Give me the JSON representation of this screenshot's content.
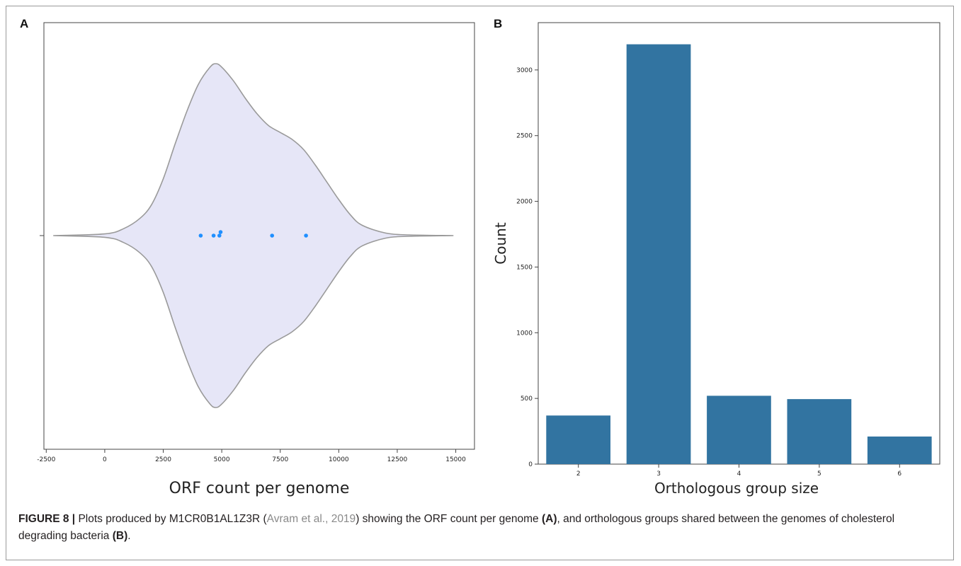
{
  "figure": {
    "panel_a_letter": "A",
    "panel_b_letter": "B"
  },
  "caption": {
    "label": "FIGURE 8 |",
    "text_1": " Plots produced by M1CR0B1AL1Z3R (",
    "citation": "Avram et al., 2019",
    "text_2": ") showing the ORF count per genome ",
    "ref_a": "(A)",
    "text_3": ", and orthologous groups shared between the genomes of cholesterol degrading bacteria ",
    "ref_b": "(B)",
    "text_4": "."
  },
  "colors": {
    "violin_fill": "#e6e6f7",
    "violin_edge": "#9a9a9a",
    "point": "#1f8fff",
    "bar": "#3274a1"
  },
  "chart_data": [
    {
      "panel": "A",
      "type": "violin",
      "xlabel": "ORF count per genome",
      "xlim": [
        -2600,
        15800
      ],
      "xticks": [
        -2500,
        0,
        2500,
        5000,
        7500,
        10000,
        12500,
        15000
      ],
      "xtick_labels": [
        "-2500",
        "0",
        "2500",
        "5000",
        "7500",
        "10000",
        "12500",
        "15000"
      ],
      "points": [
        4100,
        4650,
        4900,
        4950,
        7150,
        8600
      ],
      "density_profile": {
        "x": [
          -2200,
          0,
          800,
          1500,
          2000,
          2500,
          3000,
          3500,
          4000,
          4500,
          4750,
          5000,
          5500,
          6000,
          6500,
          7000,
          7500,
          8000,
          8500,
          9000,
          9500,
          10000,
          10500,
          11000,
          12000,
          13000,
          14900
        ],
        "half_width": [
          0,
          0.01,
          0.04,
          0.1,
          0.18,
          0.33,
          0.53,
          0.72,
          0.88,
          0.98,
          1.0,
          0.98,
          0.9,
          0.8,
          0.71,
          0.64,
          0.6,
          0.56,
          0.5,
          0.41,
          0.31,
          0.21,
          0.12,
          0.06,
          0.015,
          0.004,
          0
        ]
      },
      "grid": false
    },
    {
      "panel": "B",
      "type": "bar",
      "categories": [
        "2",
        "3",
        "4",
        "5",
        "6"
      ],
      "values": [
        370,
        3195,
        520,
        495,
        210
      ],
      "xlabel": "Orthologous group size",
      "ylabel": "Count",
      "ylim": [
        0,
        3360
      ],
      "yticks": [
        0,
        500,
        1000,
        1500,
        2000,
        2500,
        3000
      ],
      "ytick_labels": [
        "0",
        "500",
        "1000",
        "1500",
        "2000",
        "2500",
        "3000"
      ],
      "grid": false
    }
  ]
}
